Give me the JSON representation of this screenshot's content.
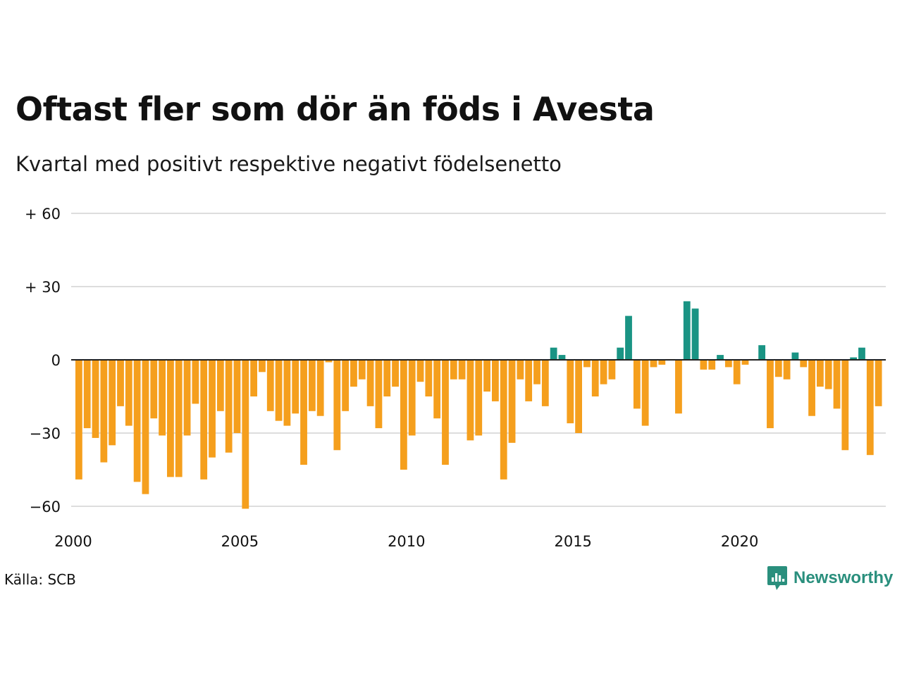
{
  "title": "Oftast fler som dör än föds i Avesta",
  "subtitle": "Kvartal med positivt respektive negativt födelsenetto",
  "source": "Källa: SCB",
  "brand": "Newsworthy",
  "colors": {
    "positive": "#1a9484",
    "negative": "#f59f1d",
    "grid": "#dddddd",
    "zero_line": "#222222",
    "brand": "#2a8f7d"
  },
  "chart_data": {
    "type": "bar",
    "x_start": "2000 Q1",
    "x_ticks": [
      "2000",
      "2005",
      "2010",
      "2015",
      "2020"
    ],
    "y_ticks": [
      "+ 60",
      "+ 30",
      "0",
      "−30",
      "−60"
    ],
    "ylim": [
      -63,
      60
    ],
    "grid": true,
    "values": [
      -49,
      -28,
      -32,
      -42,
      -35,
      -19,
      -27,
      -50,
      -55,
      -24,
      -31,
      -48,
      -48,
      -31,
      -18,
      -49,
      -40,
      -21,
      -38,
      -30,
      -61,
      -15,
      -5,
      -21,
      -25,
      -27,
      -22,
      -43,
      -21,
      -23,
      -1,
      -37,
      -21,
      -11,
      -8,
      -19,
      -28,
      -15,
      -11,
      -45,
      -31,
      -9,
      -15,
      -24,
      -43,
      -8,
      -8,
      -33,
      -31,
      -13,
      -17,
      -49,
      -34,
      -8,
      -17,
      -10,
      -19,
      5,
      2,
      -26,
      -30,
      -3,
      -15,
      -10,
      -8,
      5,
      18,
      -20,
      -27,
      -3,
      -2,
      0,
      -22,
      24,
      21,
      -4,
      -4,
      2,
      -3,
      -10,
      -2,
      0,
      6,
      -28,
      -7,
      -8,
      3,
      -3,
      -23,
      -11,
      -12,
      -20,
      -37,
      1,
      5,
      -39,
      -19
    ]
  }
}
